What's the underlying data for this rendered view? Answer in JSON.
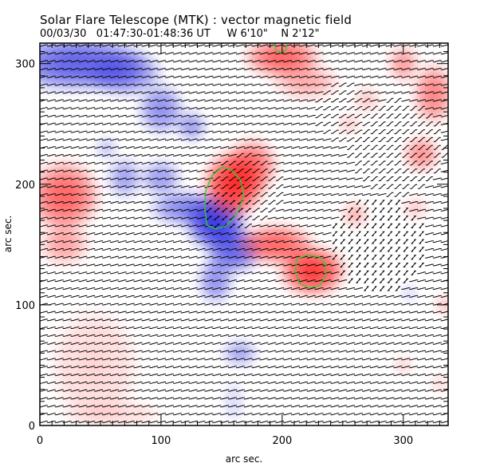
{
  "header": {
    "title": "Solar Flare Telescope (MTK) : vector magnetic field",
    "date": "00/03/30",
    "time_range": "01:47:30-01:48:36 UT",
    "lon": "W 6'10\"",
    "lat": "N 2'12\""
  },
  "chart_data": {
    "type": "heatmap",
    "title": "Solar Flare Telescope (MTK) : vector magnetic field",
    "xlabel": "arc sec.",
    "ylabel": "arc sec.",
    "xlim": [
      0,
      337
    ],
    "ylim": [
      0,
      317
    ],
    "x_ticks": [
      0,
      100,
      200,
      300
    ],
    "y_ticks": [
      0,
      100,
      200,
      300
    ],
    "x_minor_step": 10,
    "y_minor_step": 10,
    "grid": false,
    "colors": {
      "positive": "#ff2020",
      "negative": "#2020e0",
      "contour": "#33cc33",
      "vector": "#000000"
    },
    "field_blobs": [
      {
        "polarity": "negative",
        "x": 30,
        "y": 300,
        "rx": 55,
        "ry": 22,
        "strength": 0.75
      },
      {
        "polarity": "negative",
        "x": 70,
        "y": 292,
        "rx": 30,
        "ry": 18,
        "strength": 0.6
      },
      {
        "polarity": "negative",
        "x": 100,
        "y": 262,
        "rx": 18,
        "ry": 20,
        "strength": 0.55
      },
      {
        "polarity": "negative",
        "x": 125,
        "y": 248,
        "rx": 12,
        "ry": 12,
        "strength": 0.5
      },
      {
        "polarity": "negative",
        "x": 55,
        "y": 230,
        "rx": 8,
        "ry": 8,
        "strength": 0.35
      },
      {
        "polarity": "negative",
        "x": 70,
        "y": 205,
        "rx": 14,
        "ry": 16,
        "strength": 0.45
      },
      {
        "polarity": "negative",
        "x": 100,
        "y": 205,
        "rx": 16,
        "ry": 14,
        "strength": 0.5
      },
      {
        "polarity": "negative",
        "x": 120,
        "y": 180,
        "rx": 28,
        "ry": 14,
        "strength": 0.6
      },
      {
        "polarity": "negative",
        "x": 145,
        "y": 168,
        "rx": 24,
        "ry": 22,
        "strength": 0.95
      },
      {
        "polarity": "negative",
        "x": 160,
        "y": 145,
        "rx": 22,
        "ry": 18,
        "strength": 0.75
      },
      {
        "polarity": "negative",
        "x": 145,
        "y": 120,
        "rx": 14,
        "ry": 18,
        "strength": 0.55
      },
      {
        "polarity": "negative",
        "x": 165,
        "y": 60,
        "rx": 14,
        "ry": 10,
        "strength": 0.45
      },
      {
        "polarity": "negative",
        "x": 160,
        "y": 20,
        "rx": 8,
        "ry": 16,
        "strength": 0.2
      },
      {
        "polarity": "negative",
        "x": 305,
        "y": 110,
        "rx": 6,
        "ry": 6,
        "strength": 0.25
      },
      {
        "polarity": "positive",
        "x": 160,
        "y": 200,
        "rx": 24,
        "ry": 26,
        "strength": 1.0
      },
      {
        "polarity": "positive",
        "x": 175,
        "y": 215,
        "rx": 20,
        "ry": 22,
        "strength": 0.7
      },
      {
        "polarity": "positive",
        "x": 195,
        "y": 150,
        "rx": 30,
        "ry": 16,
        "strength": 0.75
      },
      {
        "polarity": "positive",
        "x": 225,
        "y": 128,
        "rx": 26,
        "ry": 20,
        "strength": 0.95
      },
      {
        "polarity": "positive",
        "x": 20,
        "y": 190,
        "rx": 28,
        "ry": 28,
        "strength": 0.75
      },
      {
        "polarity": "positive",
        "x": 20,
        "y": 150,
        "rx": 20,
        "ry": 16,
        "strength": 0.45
      },
      {
        "polarity": "positive",
        "x": 200,
        "y": 305,
        "rx": 30,
        "ry": 16,
        "strength": 0.75
      },
      {
        "polarity": "positive",
        "x": 220,
        "y": 285,
        "rx": 26,
        "ry": 14,
        "strength": 0.4
      },
      {
        "polarity": "positive",
        "x": 300,
        "y": 300,
        "rx": 12,
        "ry": 14,
        "strength": 0.5
      },
      {
        "polarity": "positive",
        "x": 325,
        "y": 275,
        "rx": 16,
        "ry": 24,
        "strength": 0.6
      },
      {
        "polarity": "positive",
        "x": 315,
        "y": 225,
        "rx": 14,
        "ry": 14,
        "strength": 0.55
      },
      {
        "polarity": "positive",
        "x": 255,
        "y": 250,
        "rx": 8,
        "ry": 8,
        "strength": 0.3
      },
      {
        "polarity": "positive",
        "x": 270,
        "y": 270,
        "rx": 10,
        "ry": 10,
        "strength": 0.3
      },
      {
        "polarity": "positive",
        "x": 260,
        "y": 175,
        "rx": 10,
        "ry": 10,
        "strength": 0.4
      },
      {
        "polarity": "positive",
        "x": 310,
        "y": 180,
        "rx": 10,
        "ry": 8,
        "strength": 0.3
      },
      {
        "polarity": "positive",
        "x": 300,
        "y": 50,
        "rx": 6,
        "ry": 6,
        "strength": 0.35
      },
      {
        "polarity": "positive",
        "x": 335,
        "y": 100,
        "rx": 8,
        "ry": 8,
        "strength": 0.35
      },
      {
        "polarity": "positive",
        "x": 330,
        "y": 35,
        "rx": 6,
        "ry": 6,
        "strength": 0.3
      },
      {
        "polarity": "positive",
        "x": 45,
        "y": 50,
        "rx": 35,
        "ry": 45,
        "strength": 0.2
      },
      {
        "polarity": "positive",
        "x": 60,
        "y": 10,
        "rx": 40,
        "ry": 10,
        "strength": 0.2
      }
    ],
    "contours": [
      {
        "label": "contour-1",
        "points": [
          [
            138,
            166
          ],
          [
            136,
            180
          ],
          [
            137,
            195
          ],
          [
            142,
            207
          ],
          [
            150,
            214
          ],
          [
            158,
            212
          ],
          [
            166,
            203
          ],
          [
            168,
            190
          ],
          [
            164,
            178
          ],
          [
            160,
            172
          ],
          [
            153,
            165
          ],
          [
            145,
            163
          ]
        ]
      },
      {
        "label": "contour-2",
        "points": [
          [
            211,
            128
          ],
          [
            212,
            138
          ],
          [
            220,
            141
          ],
          [
            230,
            140
          ],
          [
            236,
            134
          ],
          [
            236,
            124
          ],
          [
            231,
            116
          ],
          [
            222,
            114
          ],
          [
            214,
            118
          ]
        ]
      },
      {
        "label": "contour-3",
        "points": [
          [
            193,
            317
          ],
          [
            195,
            311
          ],
          [
            199,
            309
          ],
          [
            203,
            311
          ],
          [
            204,
            317
          ]
        ]
      }
    ],
    "vectors": {
      "x_step": 6.5,
      "y_step": 6.5,
      "default_angle_deg": 15,
      "inclined_regions": [
        {
          "x": 170,
          "y": 195,
          "radius": 30,
          "angle_deg": 40
        },
        {
          "x": 155,
          "y": 180,
          "radius": 18,
          "angle_deg": 215
        },
        {
          "x": 295,
          "y": 230,
          "radius": 40,
          "angle_deg": 45
        },
        {
          "x": 280,
          "y": 150,
          "radius": 40,
          "angle_deg": 225
        },
        {
          "x": 250,
          "y": 260,
          "radius": 25,
          "angle_deg": 35
        }
      ]
    }
  }
}
